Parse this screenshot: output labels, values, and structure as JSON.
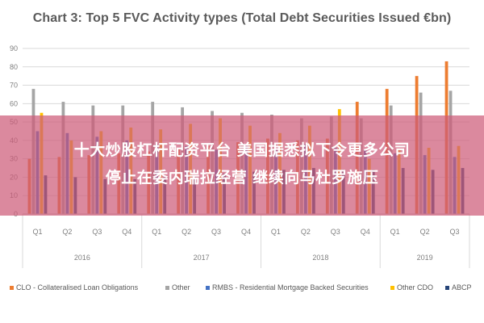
{
  "banner": {
    "line1": "十大炒股杠杆配资平台 美国据悉拟下令更多公司",
    "line2": "停止在委内瑞拉经营 继续向马杜罗施压"
  },
  "chart_data": {
    "type": "bar",
    "title": "Chart 3: Top 5 FVC Activity types (Total Debt Securities Issued €bn)",
    "xlabel": "",
    "ylabel": "",
    "ylim": [
      0,
      90
    ],
    "yticks": [
      "0",
      "10",
      "20",
      "30",
      "40",
      "50",
      "60",
      "70",
      "80",
      "90"
    ],
    "grid": true,
    "legend_position": "bottom",
    "categories": [
      "Q1",
      "Q2",
      "Q3",
      "Q4",
      "Q1",
      "Q2",
      "Q3",
      "Q4",
      "Q1",
      "Q2",
      "Q3",
      "Q4",
      "Q1",
      "Q2",
      "Q3"
    ],
    "years": [
      {
        "label": "2016",
        "count": 4
      },
      {
        "label": "2017",
        "count": 4
      },
      {
        "label": "2018",
        "count": 4
      },
      {
        "label": "2019",
        "count": 3
      }
    ],
    "series": [
      {
        "name": "CLO - Collateralised Loan Obligations",
        "color": "#ed7d31",
        "values": [
          30,
          31,
          32,
          33,
          34,
          36,
          37,
          39,
          41,
          40,
          41,
          61,
          68,
          75,
          83
        ]
      },
      {
        "name": "Other",
        "color": "#a5a5a5",
        "values": [
          68,
          61,
          59,
          59,
          61,
          58,
          56,
          55,
          54,
          52,
          53,
          52,
          59,
          66,
          67
        ]
      },
      {
        "name": "RMBS - Residential Mortgage Backed Securities",
        "color": "#4472c4",
        "values": [
          45,
          44,
          42,
          40,
          38,
          37,
          35,
          37,
          35,
          38,
          36,
          35,
          33,
          32,
          31
        ]
      },
      {
        "name": "Other CDO",
        "color": "#ffc000",
        "values": [
          55,
          40,
          45,
          47,
          46,
          49,
          52,
          48,
          44,
          48,
          57,
          30,
          35,
          36,
          37
        ]
      },
      {
        "name": "ABCP",
        "color": "#264478",
        "values": [
          21,
          20,
          19,
          19,
          20,
          20,
          22,
          23,
          24,
          25,
          24,
          24,
          25,
          24,
          25
        ]
      }
    ]
  }
}
